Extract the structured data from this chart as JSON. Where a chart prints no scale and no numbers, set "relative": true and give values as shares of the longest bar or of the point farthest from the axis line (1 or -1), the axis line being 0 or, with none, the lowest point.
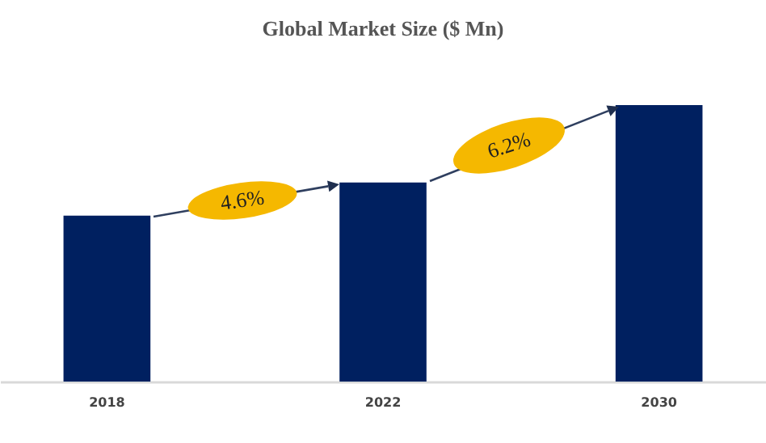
{
  "chart_data": {
    "type": "bar",
    "title": "Global Market Size ($ Mn)",
    "categories": [
      "2018",
      "2022",
      "2030"
    ],
    "values": [
      0.6,
      0.72,
      1
    ],
    "color": "#002060",
    "relative": true,
    "annotations": [
      "4.6%",
      "6.2%"
    ]
  }
}
